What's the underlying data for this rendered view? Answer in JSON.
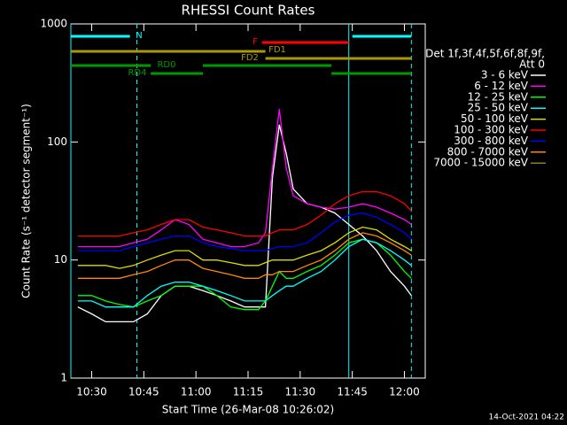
{
  "chart_data": {
    "type": "line",
    "title": "RHESSI Count Rates",
    "x_label": "Start Time (26-Mar-08 10:26:02)",
    "y_label": "Count Rate (s⁻¹ detector segment⁻¹)",
    "footer": "14-Oct-2021 04:22",
    "legend_title": [
      "Det 1f,3f,4f,5f,6f,8f,9f,",
      "Att 0"
    ],
    "log_y": true,
    "xlim": [
      "10:24",
      "12:06"
    ],
    "ylim": [
      1,
      1000
    ],
    "xticks": [
      "10:30",
      "10:45",
      "11:00",
      "11:15",
      "11:30",
      "11:45",
      "12:00"
    ],
    "yticks": [
      1,
      10,
      100,
      1000
    ],
    "x": [
      "10:26",
      "10:30",
      "10:34",
      "10:38",
      "10:42",
      "10:46",
      "10:50",
      "10:54",
      "10:58",
      "11:02",
      "11:06",
      "11:10",
      "11:14",
      "11:18",
      "11:20",
      "11:22",
      "11:24",
      "11:26",
      "11:28",
      "11:32",
      "11:36",
      "11:40",
      "11:44",
      "11:48",
      "11:52",
      "11:56",
      "12:00",
      "12:02"
    ],
    "series": [
      {
        "name": "3 - 6 keV",
        "color": "#ffffff",
        "values": [
          4,
          3.5,
          3,
          3,
          3,
          3.5,
          5,
          6,
          6,
          5.5,
          5,
          4.5,
          4,
          4,
          4,
          50,
          140,
          80,
          40,
          30,
          28,
          25,
          20,
          16,
          12,
          8,
          6,
          5
        ]
      },
      {
        "name": "6 - 12 keV",
        "color": "#ff00ff",
        "values": [
          13,
          13,
          13,
          13,
          14,
          15,
          18,
          22,
          20,
          15,
          14,
          13,
          13,
          14,
          17,
          60,
          190,
          60,
          35,
          30,
          28,
          27,
          28,
          30,
          28,
          25,
          22,
          20
        ]
      },
      {
        "name": "12 - 25 keV",
        "color": "#00ff00",
        "values": [
          5,
          5,
          4.5,
          4.2,
          4,
          4.5,
          5,
          6,
          6,
          6,
          5,
          4,
          3.8,
          3.8,
          4.5,
          6,
          8,
          7,
          7,
          8,
          9,
          11,
          14,
          15,
          14,
          11,
          8,
          7
        ]
      },
      {
        "name": "25 - 50 keV",
        "color": "#00ffff",
        "values": [
          4.5,
          4.5,
          4,
          4,
          4,
          5,
          6,
          6.5,
          6.5,
          6,
          5.5,
          5,
          4.5,
          4.5,
          4.5,
          5,
          5.5,
          6,
          6,
          7,
          8,
          10,
          13,
          15,
          14,
          12,
          10,
          9
        ]
      },
      {
        "name": "50 - 100 keV",
        "color": "#dddd00",
        "values": [
          9,
          9,
          9,
          8.5,
          9,
          10,
          11,
          12,
          12,
          10,
          10,
          9.5,
          9,
          9,
          9.5,
          10,
          10,
          10,
          10,
          11,
          12,
          14,
          17,
          19,
          18,
          15,
          13,
          12
        ]
      },
      {
        "name": "100 - 300 keV",
        "color": "#ff0000",
        "values": [
          16,
          16,
          16,
          16,
          17,
          18,
          20,
          22,
          22,
          19,
          18,
          17,
          16,
          16,
          16,
          17,
          18,
          18,
          18,
          20,
          24,
          30,
          35,
          38,
          38,
          35,
          30,
          26
        ]
      },
      {
        "name": "300 - 800 keV",
        "color": "#0000ff",
        "values": [
          12,
          12,
          12,
          12,
          13,
          14,
          15,
          16,
          16,
          14,
          13,
          12.5,
          12,
          12,
          12,
          12.5,
          13,
          13,
          13,
          14,
          17,
          21,
          24,
          25,
          23,
          20,
          17,
          15
        ]
      },
      {
        "name": "800 - 7000 keV",
        "color": "#ff8800",
        "values": [
          7,
          7,
          7,
          7,
          7.5,
          8,
          9,
          10,
          10,
          8.5,
          8,
          7.5,
          7,
          7,
          7.5,
          7.5,
          8,
          8,
          8,
          9,
          10,
          12,
          15,
          17,
          16,
          14,
          12,
          11
        ]
      },
      {
        "name": "7000 - 15000 keV",
        "color": "#888800",
        "values": [
          null,
          null,
          null,
          null,
          null,
          null,
          null,
          null,
          null,
          null,
          null,
          null,
          null,
          null,
          null,
          null,
          null,
          null,
          null,
          null,
          null,
          null,
          null,
          null,
          null,
          null,
          null,
          null
        ]
      }
    ],
    "state_bars": [
      {
        "label": "N",
        "color": "#00ffff",
        "segments": [
          [
            "10:24",
            "10:41"
          ],
          [
            "11:45",
            "12:02"
          ]
        ]
      },
      {
        "label": "F",
        "color": "#ff0000",
        "segments": [
          [
            "11:19",
            "11:44"
          ]
        ]
      },
      {
        "label": "FD1",
        "color": "#aa9900",
        "segments": [
          [
            "10:24",
            "11:20"
          ]
        ]
      },
      {
        "label": "FD2",
        "color": "#aa9900",
        "segments": [
          [
            "11:20",
            "12:02"
          ]
        ]
      },
      {
        "label": "RD0",
        "color": "#009900",
        "segments": [
          [
            "10:24",
            "10:47"
          ],
          [
            "11:02",
            "11:39"
          ]
        ]
      },
      {
        "label": "RD4",
        "color": "#009900",
        "segments": [
          [
            "10:47",
            "11:02"
          ],
          [
            "11:39",
            "12:02"
          ]
        ]
      }
    ],
    "markers": [
      {
        "x": "10:24",
        "color": "#00ffff",
        "style": "solid"
      },
      {
        "x": "10:43",
        "color": "#00ffff",
        "style": "dashed"
      },
      {
        "x": "11:44",
        "color": "#00ffff",
        "style": "solid"
      },
      {
        "x": "12:02",
        "color": "#00ffff",
        "style": "dashed"
      }
    ]
  }
}
